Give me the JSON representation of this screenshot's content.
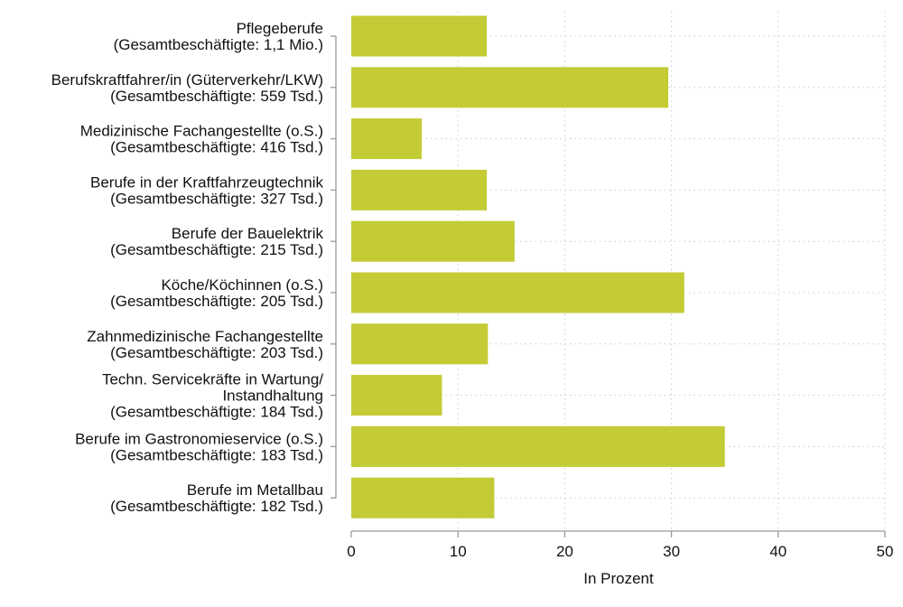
{
  "chart_data": {
    "type": "bar",
    "orientation": "horizontal",
    "title": "",
    "xlabel": "In Prozent",
    "ylabel": "",
    "xlim": [
      0,
      50
    ],
    "xticks": [
      0,
      10,
      20,
      30,
      40,
      50
    ],
    "grid": true,
    "bar_color": "#c3cb35",
    "categories": [
      [
        "Pflegeberufe",
        "(Gesamtbeschäftigte: 1,1 Mio.)"
      ],
      [
        "Berufskraftfahrer/in (Güterverkehr/LKW)",
        "(Gesamtbeschäftigte: 559 Tsd.)"
      ],
      [
        "Medizinische Fachangestellte (o.S.)",
        "(Gesamtbeschäftigte: 416 Tsd.)"
      ],
      [
        "Berufe in der Kraftfahrzeugtechnik",
        "(Gesamtbeschäftigte: 327 Tsd.)"
      ],
      [
        "Berufe der Bauelektrik",
        "(Gesamtbeschäftigte: 215 Tsd.)"
      ],
      [
        "Köche/Köchinnen (o.S.)",
        "(Gesamtbeschäftigte: 205 Tsd.)"
      ],
      [
        "Zahnmedizinische Fachangestellte",
        "(Gesamtbeschäftigte: 203 Tsd.)"
      ],
      [
        "Techn. Servicekräfte in Wartung/",
        "Instandhaltung",
        "(Gesamtbeschäftigte: 184 Tsd.)"
      ],
      [
        "Berufe im Gastronomieservice (o.S.)",
        "(Gesamtbeschäftigte: 183 Tsd.)"
      ],
      [
        "Berufe im Metallbau",
        "(Gesamtbeschäftigte: 182 Tsd.)"
      ]
    ],
    "values": [
      12.7,
      29.7,
      6.6,
      12.7,
      15.3,
      31.2,
      12.8,
      8.5,
      35.0,
      13.4
    ]
  }
}
